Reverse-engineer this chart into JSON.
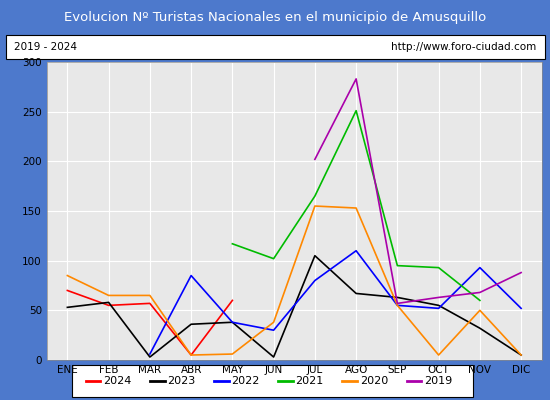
{
  "title": "Evolucion Nº Turistas Nacionales en el municipio de Amusquillo",
  "subtitle_left": "2019 - 2024",
  "subtitle_right": "http://www.foro-ciudad.com",
  "months": [
    "ENE",
    "FEB",
    "MAR",
    "ABR",
    "MAY",
    "JUN",
    "JUL",
    "AGO",
    "SEP",
    "OCT",
    "NOV",
    "DIC"
  ],
  "ylim": [
    0,
    300
  ],
  "yticks": [
    0,
    50,
    100,
    150,
    200,
    250,
    300
  ],
  "series": {
    "2024": {
      "color": "#ff0000",
      "values": [
        70,
        55,
        57,
        5,
        60,
        null,
        null,
        null,
        null,
        null,
        null,
        null
      ]
    },
    "2023": {
      "color": "#000000",
      "values": [
        53,
        58,
        3,
        36,
        38,
        3,
        105,
        67,
        63,
        55,
        32,
        5
      ]
    },
    "2022": {
      "color": "#0000ff",
      "values": [
        null,
        null,
        6,
        85,
        38,
        30,
        80,
        110,
        55,
        52,
        93,
        52
      ]
    },
    "2021": {
      "color": "#00bb00",
      "values": [
        null,
        null,
        null,
        null,
        117,
        102,
        165,
        251,
        95,
        93,
        60,
        null
      ]
    },
    "2020": {
      "color": "#ff8800",
      "values": [
        85,
        65,
        65,
        5,
        6,
        38,
        155,
        153,
        55,
        5,
        50,
        5
      ]
    },
    "2019": {
      "color": "#aa00aa",
      "values": [
        null,
        null,
        null,
        null,
        null,
        null,
        202,
        283,
        57,
        63,
        68,
        88
      ]
    }
  },
  "legend_order": [
    "2024",
    "2023",
    "2022",
    "2021",
    "2020",
    "2019"
  ],
  "title_bg_color": "#4d79cc",
  "title_font_color": "#ffffff",
  "plot_bg_color": "#e8e8e8",
  "grid_color": "#ffffff",
  "fig_bg_color": "#4d79cc"
}
